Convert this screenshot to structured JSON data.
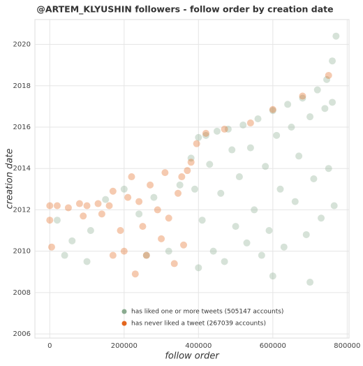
{
  "chart_data": {
    "type": "scatter",
    "title": "@ARTEM_KLYUSHIN followers - follow order by creation date",
    "x_label": "follow order",
    "y_label": "creation date",
    "xlim": [
      -40000,
      805000
    ],
    "ylim": [
      2005.8,
      2021.2
    ],
    "xticks": [
      0,
      200000,
      400000,
      600000,
      800000
    ],
    "yticks": [
      2006,
      2008,
      2010,
      2012,
      2014,
      2016,
      2018,
      2020
    ],
    "grid": true,
    "legend": "bottom",
    "series": [
      {
        "name": "has liked one or more tweets (505147 accounts)",
        "color": "#8aab90",
        "x": [
          380000,
          400000,
          420000,
          450000,
          480000,
          520000,
          560000,
          600000,
          640000,
          680000,
          720000,
          745000,
          760000,
          770000,
          390000,
          410000,
          430000,
          440000,
          460000,
          470000,
          490000,
          500000,
          510000,
          530000,
          540000,
          550000,
          570000,
          580000,
          590000,
          610000,
          620000,
          630000,
          650000,
          660000,
          670000,
          690000,
          700000,
          710000,
          730000,
          740000,
          750000,
          760000,
          765000,
          400000,
          600000,
          700000,
          20000,
          60000,
          110000,
          150000,
          200000,
          240000,
          280000,
          320000,
          350000,
          40000,
          100000,
          260000
        ],
        "y": [
          2014.5,
          2015.5,
          2015.6,
          2015.8,
          2015.9,
          2016.1,
          2016.4,
          2016.8,
          2017.1,
          2017.4,
          2017.8,
          2018.3,
          2019.2,
          2020.4,
          2013.0,
          2011.5,
          2014.2,
          2010.0,
          2012.8,
          2009.5,
          2014.9,
          2011.2,
          2013.6,
          2010.4,
          2015.0,
          2012.0,
          2009.8,
          2014.1,
          2011.0,
          2015.6,
          2013.0,
          2010.2,
          2016.0,
          2012.4,
          2014.6,
          2010.8,
          2016.5,
          2013.5,
          2011.6,
          2016.9,
          2014.0,
          2017.2,
          2012.2,
          2009.2,
          2008.8,
          2008.5,
          2011.5,
          2010.5,
          2011.0,
          2012.5,
          2013.0,
          2011.8,
          2012.6,
          2010.0,
          2013.2,
          2009.8,
          2009.5,
          2009.8
        ]
      },
      {
        "name": "has never liked a tweet (267039 accounts)",
        "color": "#e3661e",
        "x": [
          0,
          20000,
          50000,
          80000,
          100000,
          130000,
          160000,
          90000,
          140000,
          0,
          5000,
          170000,
          190000,
          200000,
          210000,
          220000,
          240000,
          250000,
          260000,
          270000,
          290000,
          300000,
          310000,
          320000,
          335000,
          345000,
          355000,
          360000,
          370000,
          380000,
          395000,
          420000,
          470000,
          540000,
          600000,
          680000,
          750000,
          170000,
          230000
        ],
        "y": [
          2012.2,
          2012.2,
          2012.1,
          2012.3,
          2012.2,
          2012.3,
          2012.2,
          2011.7,
          2011.8,
          2011.5,
          2010.2,
          2012.9,
          2011.0,
          2010.0,
          2012.6,
          2013.6,
          2012.4,
          2011.2,
          2009.8,
          2013.2,
          2012.0,
          2010.6,
          2013.8,
          2011.6,
          2009.4,
          2012.8,
          2013.6,
          2010.3,
          2013.9,
          2014.3,
          2015.2,
          2015.7,
          2015.9,
          2016.2,
          2016.85,
          2017.5,
          2018.5,
          2009.8,
          2008.9
        ]
      }
    ]
  }
}
